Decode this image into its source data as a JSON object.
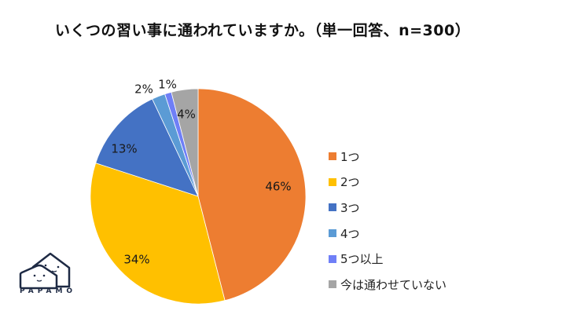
{
  "title": "いくつの習い事に通われていますか。（単一回答、n=300）",
  "chart_data": {
    "type": "pie",
    "title": "いくつの習い事に通われていますか。（単一回答、n=300）",
    "categories": [
      "1つ",
      "2つ",
      "3つ",
      "4つ",
      "5つ以上",
      "今は通わせていない"
    ],
    "values": [
      46,
      34,
      13,
      2,
      1,
      4
    ],
    "labels": [
      "46%",
      "34%",
      "13%",
      "2%",
      "1%",
      "4%"
    ],
    "colors": [
      "#ED7D31",
      "#FFC000",
      "#4472C4",
      "#5B9BD5",
      "#6F7FF7",
      "#A5A5A5"
    ],
    "start_angle": "12 o'clock, clockwise",
    "legend_position": "right"
  },
  "legend": [
    {
      "label": "1つ",
      "color": "#ED7D31"
    },
    {
      "label": "2つ",
      "color": "#FFC000"
    },
    {
      "label": "3つ",
      "color": "#4472C4"
    },
    {
      "label": "4つ",
      "color": "#5B9BD5"
    },
    {
      "label": "5つ以上",
      "color": "#6F7FF7"
    },
    {
      "label": "今は通わせていない",
      "color": "#A5A5A5"
    }
  ],
  "logo": {
    "text": "PAPAMO"
  }
}
